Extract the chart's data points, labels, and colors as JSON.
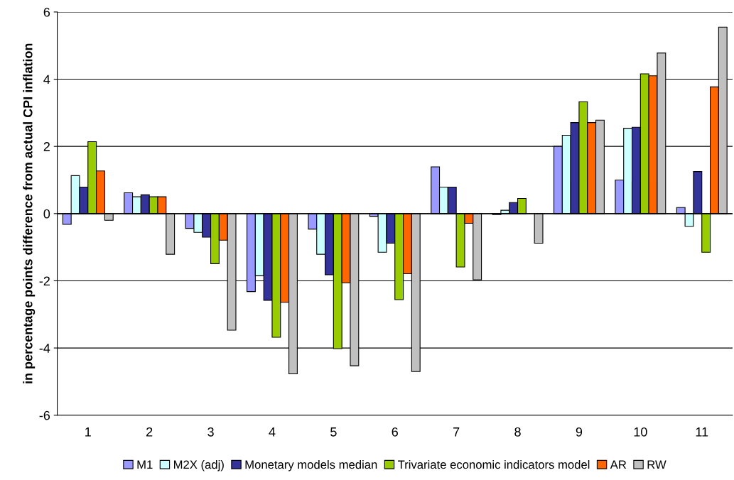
{
  "chart_data": {
    "type": "bar",
    "ylabel": "in percentage points difference from actual CPI inflation",
    "categories": [
      "1",
      "2",
      "3",
      "4",
      "5",
      "6",
      "7",
      "8",
      "9",
      "10",
      "11"
    ],
    "series": [
      {
        "name": "M1",
        "color": "#9999ff",
        "values": [
          -0.32,
          0.62,
          -0.44,
          -2.32,
          -0.46,
          -0.08,
          1.39,
          -0.03,
          2.0,
          1.0,
          0.18
        ]
      },
      {
        "name": "M2X (adj)",
        "color": "#ccffff",
        "values": [
          1.13,
          0.5,
          -0.56,
          -1.85,
          -1.21,
          -1.15,
          0.79,
          0.1,
          2.33,
          2.54,
          -0.38
        ]
      },
      {
        "name": "Monetary models median",
        "color": "#333399",
        "values": [
          0.79,
          0.56,
          -0.7,
          -2.58,
          -1.82,
          -0.88,
          0.79,
          0.33,
          2.71,
          2.57,
          1.25
        ]
      },
      {
        "name": "Trivariate economic indicators model",
        "color": "#99cc00",
        "values": [
          2.14,
          0.5,
          -1.49,
          -3.68,
          -4.02,
          -2.56,
          -1.59,
          0.45,
          3.33,
          4.16,
          -1.15
        ]
      },
      {
        "name": "AR",
        "color": "#ff6600",
        "values": [
          1.27,
          0.5,
          -0.79,
          -2.64,
          -2.06,
          -1.79,
          -0.29,
          null,
          2.71,
          4.1,
          3.77
        ]
      },
      {
        "name": "RW",
        "color": "#c0c0c0",
        "values": [
          -0.2,
          -1.21,
          -3.47,
          -4.77,
          -4.53,
          -4.7,
          -1.97,
          -0.88,
          2.78,
          4.78,
          5.55
        ]
      }
    ],
    "ylim": [
      -6,
      6
    ],
    "yticks": [
      {
        "value": -6,
        "label": "-6"
      },
      {
        "value": -4,
        "label": "-4"
      },
      {
        "value": -2,
        "label": "-2"
      },
      0,
      2,
      4,
      6
    ],
    "grid": "y",
    "legend": "bottom"
  }
}
